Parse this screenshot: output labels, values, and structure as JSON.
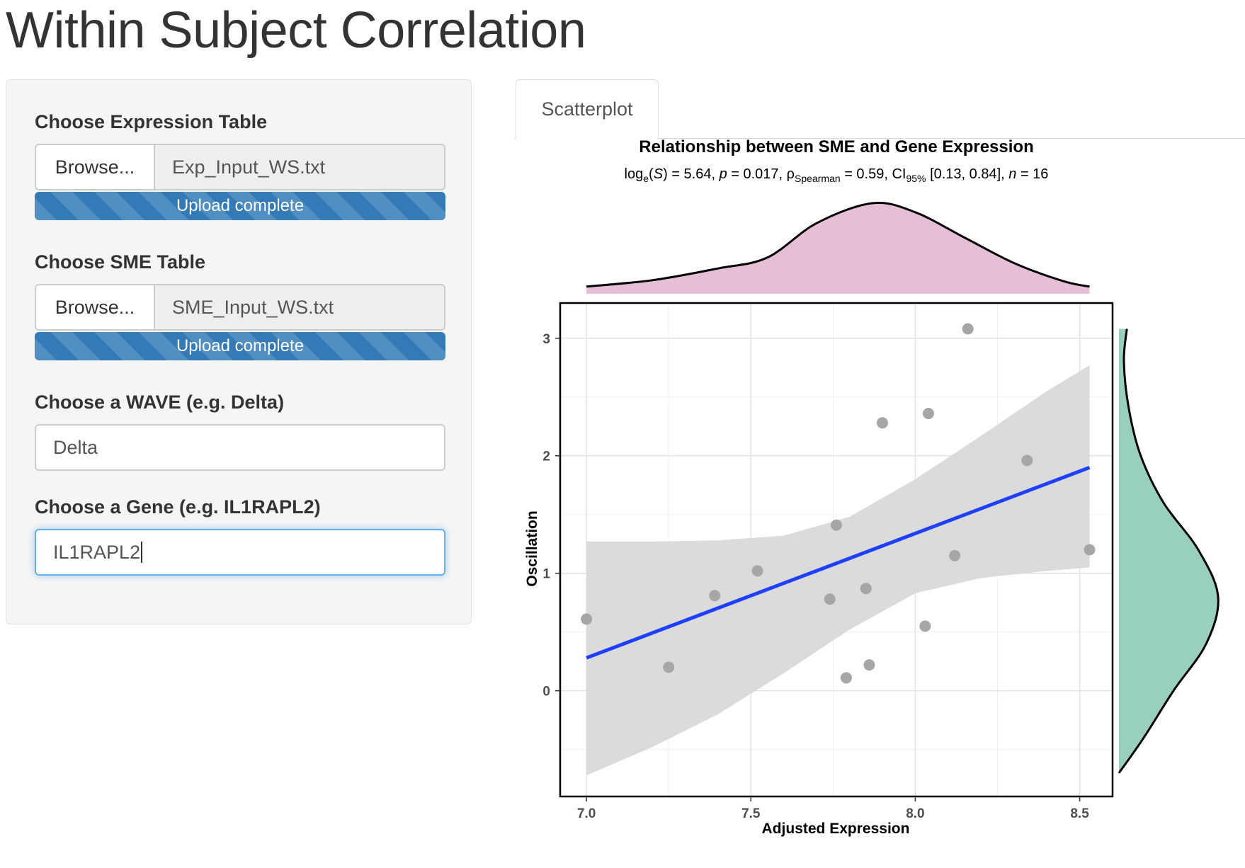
{
  "page": {
    "title": "Within Subject Correlation"
  },
  "expression": {
    "label": "Choose Expression Table",
    "browse_label": "Browse...",
    "file_name": "Exp_Input_WS.txt",
    "progress_text": "Upload complete",
    "progress": 1.0
  },
  "sme": {
    "label": "Choose SME Table",
    "browse_label": "Browse...",
    "file_name": "SME_Input_WS.txt",
    "progress_text": "Upload complete",
    "progress": 1.0
  },
  "wave": {
    "label": "Choose a WAVE (e.g. Delta)",
    "value": "Delta"
  },
  "gene": {
    "label": "Choose a Gene (e.g. IL1RAPL2)",
    "value": "IL1RAPL2"
  },
  "tabs": [
    {
      "label": "Scatterplot",
      "active": true
    }
  ],
  "colors": {
    "progress": "#337ab7",
    "points": "#a6a6a6",
    "fit_line": "#1f3fff",
    "ci_band": "#d9d9d9",
    "top_density": "#e6bfd6",
    "right_density": "#98d0bd"
  },
  "chart_data": {
    "type": "scatter",
    "title": "Relationship between SME and Gene Expression",
    "subtitle": {
      "log_label": "log",
      "log_sub": "e",
      "stat_var": "S",
      "stat_value": ") = 5.64, ",
      "p_var": "p",
      "p_value": "  = 0.017, ",
      "rho": "ρ",
      "rho_sub": "Spearman",
      "rho_value": " = 0.59, CI",
      "ci_sub": "95%",
      "ci_value": " [0.13, 0.84], ",
      "n_var": "n",
      "n_value": " = 16"
    },
    "xlabel": "Adjusted Expression",
    "ylabel": "Oscillation",
    "xlim": [
      6.92,
      8.6
    ],
    "ylim": [
      -0.9,
      3.3
    ],
    "xticks": [
      "7.0",
      "7.5",
      "8.0",
      "8.5"
    ],
    "yticks": [
      "0",
      "1",
      "2",
      "3"
    ],
    "grid": true,
    "points": [
      {
        "x": 7.0,
        "y": 0.61
      },
      {
        "x": 7.25,
        "y": 0.2
      },
      {
        "x": 7.39,
        "y": 0.81
      },
      {
        "x": 7.52,
        "y": 1.02
      },
      {
        "x": 7.74,
        "y": 0.78
      },
      {
        "x": 7.76,
        "y": 1.41
      },
      {
        "x": 7.79,
        "y": 0.11
      },
      {
        "x": 7.85,
        "y": 0.87
      },
      {
        "x": 7.86,
        "y": 0.22
      },
      {
        "x": 7.9,
        "y": 2.28
      },
      {
        "x": 8.03,
        "y": 0.55
      },
      {
        "x": 8.04,
        "y": 2.36
      },
      {
        "x": 8.12,
        "y": 1.15
      },
      {
        "x": 8.16,
        "y": 3.08
      },
      {
        "x": 8.34,
        "y": 1.96
      },
      {
        "x": 8.53,
        "y": 1.2
      }
    ],
    "fit_line": {
      "x": [
        7.0,
        8.53
      ],
      "y": [
        0.28,
        1.9
      ]
    },
    "ci_band": {
      "x": [
        7.0,
        7.2,
        7.4,
        7.6,
        7.8,
        8.0,
        8.2,
        8.4,
        8.53
      ],
      "upper": [
        1.27,
        1.27,
        1.28,
        1.32,
        1.48,
        1.8,
        2.17,
        2.55,
        2.77
      ],
      "lower": [
        -0.72,
        -0.48,
        -0.2,
        0.15,
        0.52,
        0.83,
        0.96,
        1.02,
        1.05
      ]
    },
    "marginal_x_density": {
      "x": [
        7.0,
        7.2,
        7.4,
        7.55,
        7.7,
        7.87,
        8.0,
        8.15,
        8.3,
        8.45,
        8.53
      ],
      "density": [
        0.08,
        0.15,
        0.28,
        0.4,
        0.78,
        1.0,
        0.9,
        0.62,
        0.34,
        0.14,
        0.08
      ]
    },
    "marginal_y_density": {
      "y": [
        -0.7,
        -0.4,
        0.0,
        0.4,
        0.8,
        1.2,
        1.6,
        2.0,
        2.4,
        2.8,
        3.08
      ],
      "density": [
        0.0,
        0.25,
        0.55,
        0.88,
        1.0,
        0.8,
        0.45,
        0.22,
        0.1,
        0.05,
        0.08
      ]
    }
  }
}
